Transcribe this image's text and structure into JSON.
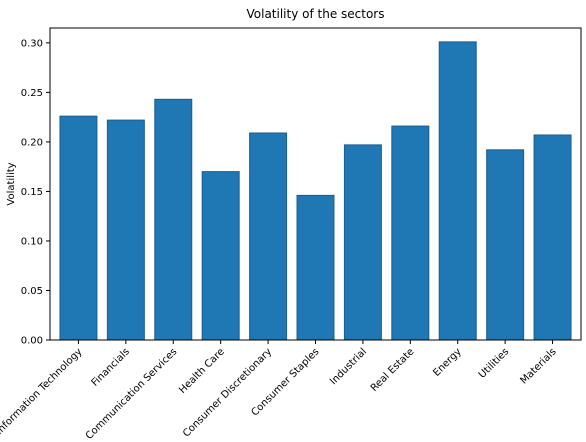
{
  "chart_data": {
    "type": "bar",
    "title": "Volatility of the sectors",
    "xlabel": "",
    "ylabel": "Volatility",
    "categories": [
      "Information Technology",
      "Financials",
      "Communication Services",
      "Health Care",
      "Consumer Discretionary",
      "Consumer Staples",
      "Industrial",
      "Real Estate",
      "Energy",
      "Utilities",
      "Materials"
    ],
    "values": [
      0.226,
      0.222,
      0.243,
      0.17,
      0.209,
      0.146,
      0.197,
      0.216,
      0.301,
      0.192,
      0.207
    ],
    "ylim": [
      0,
      0.315
    ],
    "yticks": [
      "0.00",
      "0.05",
      "0.10",
      "0.15",
      "0.20",
      "0.25",
      "0.30"
    ],
    "ytick_values": [
      0,
      0.05,
      0.1,
      0.15,
      0.2,
      0.25,
      0.3
    ],
    "bar_color": "#1f77b4",
    "bar_edge_color": "#1a5e8f",
    "grid": false,
    "legend": "none"
  }
}
